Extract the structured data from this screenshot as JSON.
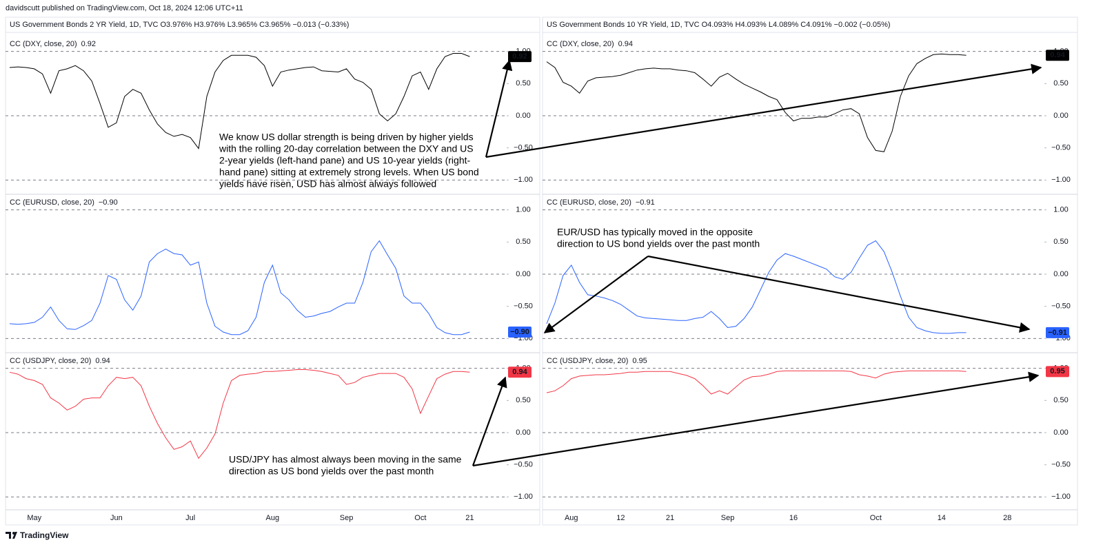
{
  "header": {
    "published": "davidscutt published on TradingView.com, Oct 18, 2024 12:06 UTC+11"
  },
  "footer": {
    "brand": "TradingView"
  },
  "chart_data": [
    {
      "type": "line",
      "title": "US Government Bonds 2 YR Yield, 1D, TVC O3.976% H3.976% L3.965% C3.965% −0.013 (−0.33%)",
      "categories": [
        null,
        null,
        null,
        "May",
        null,
        null,
        null,
        null,
        null,
        null,
        null,
        null,
        null,
        "Jun",
        null,
        null,
        null,
        null,
        null,
        null,
        null,
        null,
        "Jul",
        null,
        null,
        null,
        null,
        null,
        null,
        null,
        null,
        null,
        "Aug",
        null,
        null,
        null,
        null,
        null,
        null,
        null,
        null,
        "Sep",
        null,
        null,
        null,
        null,
        null,
        null,
        null,
        null,
        "Oct",
        null,
        null,
        null,
        null,
        null,
        "21",
        null,
        null,
        null,
        null
      ],
      "panes": [
        {
          "series": [
            {
              "name": "CC (DXY, close, 20)",
              "color": "#000000",
              "values": [
                0.75,
                0.76,
                0.75,
                0.73,
                0.65,
                0.35,
                0.7,
                0.73,
                0.78,
                0.7,
                0.54,
                0.19,
                -0.18,
                -0.11,
                0.3,
                0.41,
                0.35,
                0.09,
                -0.13,
                -0.26,
                -0.32,
                -0.29,
                -0.34,
                -0.51,
                0.3,
                0.68,
                0.86,
                0.94,
                0.94,
                0.94,
                0.91,
                0.78,
                0.46,
                0.68,
                0.71,
                0.73,
                0.75,
                0.76,
                0.7,
                0.69,
                0.68,
                0.73,
                0.57,
                0.52,
                0.41,
                0.03,
                -0.08,
                0.03,
                0.3,
                0.62,
                0.68,
                0.41,
                0.73,
                0.92,
                0.97,
                0.97,
                0.92,
                null,
                null,
                null,
                null
              ],
              "value_label": "0.92"
            }
          ],
          "ylim": [
            -1.2,
            1.2
          ],
          "yticks": [
            {
              "value": 1,
              "label": "1.00"
            },
            {
              "value": 0.5,
              "label": "0.50"
            },
            {
              "value": 0,
              "label": "0.00"
            },
            {
              "value": -0.5,
              "label": "−0.50"
            },
            {
              "value": -1,
              "label": "−1.00"
            }
          ],
          "dashed_levels": [
            1,
            0,
            -1
          ]
        },
        {
          "series": [
            {
              "name": "CC (EURUSD, close, 20)",
              "color": "#2962ff",
              "values": [
                -0.77,
                -0.78,
                -0.77,
                -0.75,
                -0.67,
                -0.51,
                -0.72,
                -0.85,
                -0.86,
                -0.8,
                -0.72,
                -0.45,
                -0.02,
                -0.08,
                -0.4,
                -0.56,
                -0.34,
                0.19,
                0.32,
                0.39,
                0.32,
                0.3,
                0.14,
                0.19,
                -0.45,
                -0.81,
                -0.9,
                -0.94,
                -0.94,
                -0.88,
                -0.67,
                -0.13,
                0.14,
                -0.29,
                -0.4,
                -0.56,
                -0.67,
                -0.65,
                -0.61,
                -0.58,
                -0.51,
                -0.45,
                -0.45,
                -0.13,
                0.35,
                0.52,
                0.3,
                0.09,
                -0.34,
                -0.45,
                -0.45,
                -0.61,
                -0.83,
                -0.91,
                -0.94,
                -0.94,
                -0.9,
                null,
                null,
                null,
                null
              ],
              "value_label": "−0.90"
            }
          ],
          "ylim": [
            -1.2,
            1.2
          ],
          "yticks": [
            {
              "value": 1,
              "label": "1.00"
            },
            {
              "value": 0.5,
              "label": "0.50"
            },
            {
              "value": 0,
              "label": "0.00"
            },
            {
              "value": -0.5,
              "label": "−0.50"
            },
            {
              "value": -1,
              "label": "−1.00"
            }
          ],
          "dashed_levels": [
            1,
            0,
            -1
          ]
        },
        {
          "series": [
            {
              "name": "CC (USDJPY, close, 20)",
              "color": "#f23645",
              "values": [
                0.94,
                0.91,
                0.84,
                0.81,
                0.75,
                0.54,
                0.46,
                0.35,
                0.41,
                0.52,
                0.54,
                0.54,
                0.73,
                0.86,
                0.84,
                0.86,
                0.73,
                0.41,
                0.14,
                -0.08,
                -0.26,
                -0.22,
                -0.13,
                -0.4,
                -0.24,
                -0.02,
                0.46,
                0.81,
                0.89,
                0.91,
                0.92,
                0.95,
                0.95,
                0.96,
                0.97,
                0.98,
                0.98,
                0.97,
                0.95,
                0.92,
                0.89,
                0.75,
                0.78,
                0.86,
                0.89,
                0.92,
                0.92,
                0.92,
                0.86,
                0.68,
                0.3,
                0.57,
                0.84,
                0.91,
                0.95,
                0.95,
                0.94,
                null,
                null,
                null,
                null
              ],
              "value_label": "0.94"
            }
          ],
          "ylim": [
            -1.2,
            1.2
          ],
          "yticks": [
            {
              "value": 1,
              "label": "1.00"
            },
            {
              "value": 0.5,
              "label": "0.50"
            },
            {
              "value": 0,
              "label": "0.00"
            },
            {
              "value": -0.5,
              "label": "−0.50"
            },
            {
              "value": -1,
              "label": "−1.00"
            }
          ],
          "dashed_levels": [
            1,
            0,
            -1
          ]
        }
      ]
    },
    {
      "type": "line",
      "title": "US Government Bonds 10 YR Yield, 1D, TVC O4.093% H4.093% L4.089% C4.091% −0.002 (−0.05%)",
      "categories": [
        null,
        null,
        null,
        "Aug",
        null,
        null,
        null,
        null,
        null,
        "12",
        null,
        null,
        null,
        null,
        null,
        "21",
        null,
        null,
        null,
        null,
        null,
        null,
        "Sep",
        null,
        null,
        null,
        null,
        null,
        null,
        null,
        "16",
        null,
        null,
        null,
        null,
        null,
        null,
        null,
        null,
        null,
        "Oct",
        null,
        null,
        null,
        null,
        null,
        null,
        null,
        "14",
        null,
        null,
        null,
        null,
        null,
        null,
        null,
        "28",
        null,
        null,
        null,
        null
      ],
      "panes": [
        {
          "series": [
            {
              "name": "CC (DXY, close, 20)",
              "color": "#000000",
              "values": [
                0.84,
                0.75,
                0.52,
                0.46,
                0.35,
                0.54,
                0.59,
                0.6,
                0.61,
                0.63,
                0.67,
                0.71,
                0.73,
                0.74,
                0.73,
                0.73,
                0.71,
                0.7,
                0.67,
                0.57,
                0.46,
                0.6,
                0.66,
                0.57,
                0.49,
                0.43,
                0.37,
                0.3,
                0.25,
                0.05,
                -0.08,
                -0.04,
                -0.04,
                -0.02,
                -0.02,
                0.03,
                0.09,
                0.11,
                0.03,
                -0.34,
                -0.54,
                -0.56,
                -0.24,
                0.3,
                0.62,
                0.81,
                0.89,
                0.95,
                0.96,
                0.95,
                0.95,
                0.94,
                null,
                null,
                null,
                null,
                null,
                null,
                null,
                null,
                null
              ],
              "value_label": "0.94"
            }
          ],
          "ylim": [
            -1.2,
            1.2
          ],
          "yticks": [
            {
              "value": 1,
              "label": "1.00"
            },
            {
              "value": 0.5,
              "label": "0.50"
            },
            {
              "value": 0,
              "label": "0.00"
            },
            {
              "value": -0.5,
              "label": "−0.50"
            },
            {
              "value": -1,
              "label": "−1.00"
            }
          ],
          "dashed_levels": [
            1,
            0,
            -1
          ]
        },
        {
          "series": [
            {
              "name": "CC (EURUSD, close, 20)",
              "color": "#2962ff",
              "values": [
                -0.77,
                -0.45,
                -0.02,
                0.14,
                -0.13,
                -0.32,
                -0.34,
                -0.37,
                -0.41,
                -0.47,
                -0.56,
                -0.65,
                -0.68,
                -0.69,
                -0.7,
                -0.71,
                -0.72,
                -0.72,
                -0.69,
                -0.67,
                -0.58,
                -0.69,
                -0.83,
                -0.81,
                -0.69,
                -0.51,
                -0.24,
                0.03,
                0.22,
                0.32,
                0.28,
                0.23,
                0.18,
                0.13,
                0.08,
                -0.04,
                -0.08,
                0.03,
                0.25,
                0.45,
                0.52,
                0.35,
                0.03,
                -0.34,
                -0.67,
                -0.83,
                -0.88,
                -0.91,
                -0.92,
                -0.92,
                -0.91,
                -0.91,
                null,
                null,
                null,
                null,
                null,
                null,
                null,
                null,
                null
              ],
              "value_label": "−0.91"
            }
          ],
          "ylim": [
            -1.2,
            1.2
          ],
          "yticks": [
            {
              "value": 1,
              "label": "1.00"
            },
            {
              "value": 0.5,
              "label": "0.50"
            },
            {
              "value": 0,
              "label": "0.00"
            },
            {
              "value": -0.5,
              "label": "−0.50"
            },
            {
              "value": -1,
              "label": "−1.00"
            }
          ],
          "dashed_levels": [
            1,
            0,
            -1
          ]
        },
        {
          "series": [
            {
              "name": "CC (USDJPY, close, 20)",
              "color": "#f23645",
              "values": [
                0.62,
                0.65,
                0.73,
                0.84,
                0.88,
                0.89,
                0.9,
                0.9,
                0.91,
                0.92,
                0.94,
                0.94,
                0.95,
                0.95,
                0.95,
                0.95,
                0.92,
                0.89,
                0.84,
                0.73,
                0.6,
                0.65,
                0.6,
                0.71,
                0.82,
                0.87,
                0.88,
                0.91,
                0.95,
                0.96,
                0.96,
                0.96,
                0.96,
                0.96,
                0.96,
                0.96,
                0.96,
                0.95,
                0.9,
                0.88,
                0.85,
                0.91,
                0.94,
                0.95,
                0.96,
                0.96,
                0.96,
                0.96,
                0.96,
                0.96,
                0.96,
                0.95,
                null,
                null,
                null,
                null,
                null,
                null,
                null,
                null,
                null
              ],
              "value_label": "0.95"
            }
          ],
          "ylim": [
            -1.2,
            1.2
          ],
          "yticks": [
            {
              "value": 1,
              "label": "1.00"
            },
            {
              "value": 0.5,
              "label": "0.50"
            },
            {
              "value": 0,
              "label": "0.00"
            },
            {
              "value": -0.5,
              "label": "−0.50"
            },
            {
              "value": -1,
              "label": "−1.00"
            }
          ],
          "dashed_levels": [
            1,
            0,
            -1
          ]
        }
      ]
    }
  ],
  "annotations": [
    {
      "lines": [
        "We know US dollar strength is being driven by higher yields",
        "with the rolling 20-day correlation between the DXY and US",
        "2-year yields (left-hand pane) and US 10-year yields (right-",
        "hand pane) sitting at extremely strong levels. When US bond",
        "yields have risen, USD has almost always followed"
      ]
    },
    {
      "lines": [
        "EUR/USD has typically moved in the opposite",
        "direction to US bond yields over the past month"
      ]
    },
    {
      "lines": [
        "USD/JPY has almost always been moving in the same",
        "direction as US bond yields over the past month"
      ]
    }
  ]
}
